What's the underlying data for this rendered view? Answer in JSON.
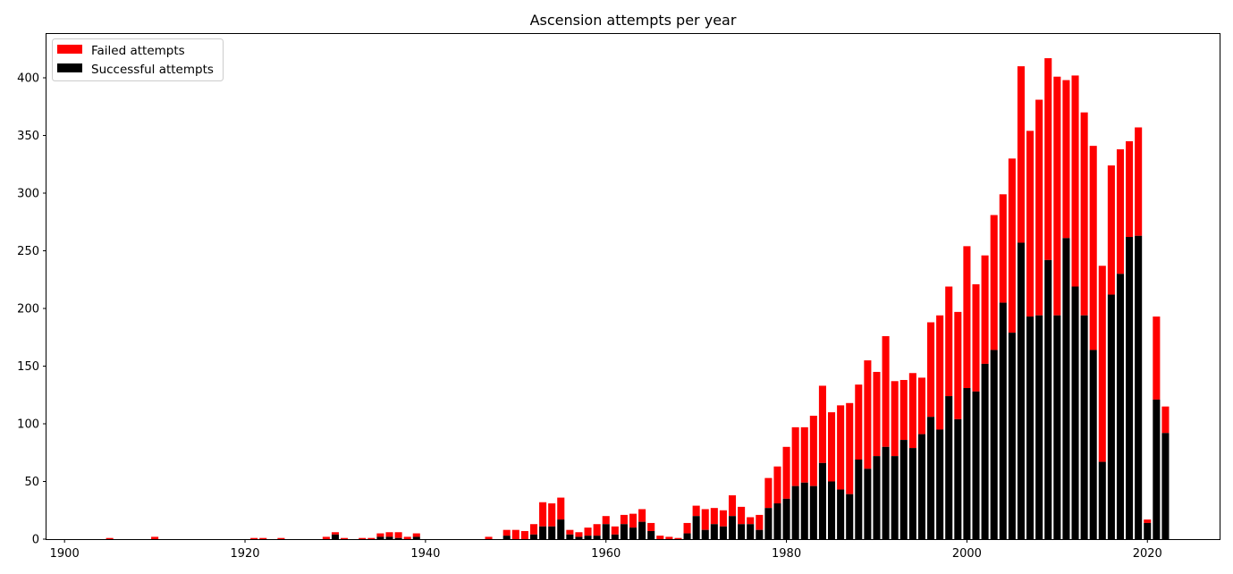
{
  "chart_data": {
    "type": "bar",
    "stacked": true,
    "title": "Ascension attempts per year",
    "xlabel": "",
    "ylabel": "",
    "xlim": [
      1898,
      2028
    ],
    "ylim": [
      0,
      438
    ],
    "xticks": [
      1900,
      1920,
      1940,
      1960,
      1980,
      2000,
      2020
    ],
    "yticks": [
      0,
      50,
      100,
      150,
      200,
      250,
      300,
      350,
      400
    ],
    "grid": false,
    "legend_position": "top-left",
    "colors": {
      "Failed attempts": "#ff0000",
      "Successful attempts": "#000000"
    },
    "legend": [
      "Failed attempts",
      "Successful attempts"
    ],
    "x": [
      1905,
      1910,
      1921,
      1922,
      1924,
      1929,
      1930,
      1931,
      1933,
      1934,
      1935,
      1936,
      1937,
      1938,
      1939,
      1947,
      1949,
      1950,
      1951,
      1952,
      1953,
      1954,
      1955,
      1956,
      1957,
      1958,
      1959,
      1960,
      1961,
      1962,
      1963,
      1964,
      1965,
      1966,
      1967,
      1968,
      1969,
      1970,
      1971,
      1972,
      1973,
      1974,
      1975,
      1976,
      1977,
      1978,
      1979,
      1980,
      1981,
      1982,
      1983,
      1984,
      1985,
      1986,
      1987,
      1988,
      1989,
      1990,
      1991,
      1992,
      1993,
      1994,
      1995,
      1996,
      1997,
      1998,
      1999,
      2000,
      2001,
      2002,
      2003,
      2004,
      2005,
      2006,
      2007,
      2008,
      2009,
      2010,
      2011,
      2012,
      2013,
      2014,
      2015,
      2016,
      2017,
      2018,
      2019,
      2020,
      2021,
      2022
    ],
    "series": [
      {
        "name": "Successful attempts",
        "values": [
          0,
          0,
          0,
          0,
          0,
          0,
          4,
          0,
          0,
          0,
          2,
          2,
          1,
          0,
          2,
          0,
          3,
          0,
          0,
          4,
          11,
          11,
          17,
          4,
          2,
          3,
          3,
          13,
          4,
          13,
          10,
          15,
          7,
          0,
          0,
          0,
          5,
          20,
          8,
          13,
          11,
          20,
          13,
          13,
          8,
          27,
          31,
          35,
          46,
          49,
          46,
          66,
          50,
          43,
          39,
          69,
          61,
          72,
          80,
          72,
          86,
          79,
          91,
          106,
          95,
          124,
          104,
          131,
          128,
          152,
          164,
          205,
          179,
          257,
          193,
          194,
          242,
          194,
          261,
          219,
          194,
          164,
          67,
          212,
          230,
          262,
          263,
          14,
          121,
          92
        ]
      },
      {
        "name": "Failed attempts",
        "values": [
          1,
          2,
          1,
          1,
          1,
          2,
          2,
          1,
          1,
          1,
          3,
          4,
          5,
          2,
          3,
          2,
          5,
          8,
          7,
          9,
          21,
          20,
          19,
          4,
          4,
          7,
          10,
          7,
          7,
          8,
          12,
          11,
          7,
          3,
          2,
          1,
          9,
          9,
          18,
          14,
          14,
          18,
          15,
          6,
          13,
          26,
          32,
          45,
          51,
          48,
          61,
          67,
          60,
          73,
          79,
          65,
          94,
          73,
          96,
          65,
          52,
          65,
          49,
          82,
          99,
          95,
          93,
          123,
          93,
          94,
          117,
          94,
          151,
          153,
          161,
          187,
          175,
          207,
          137,
          183,
          176,
          177,
          170,
          112,
          108,
          83,
          94,
          3,
          72,
          23
        ]
      }
    ]
  }
}
